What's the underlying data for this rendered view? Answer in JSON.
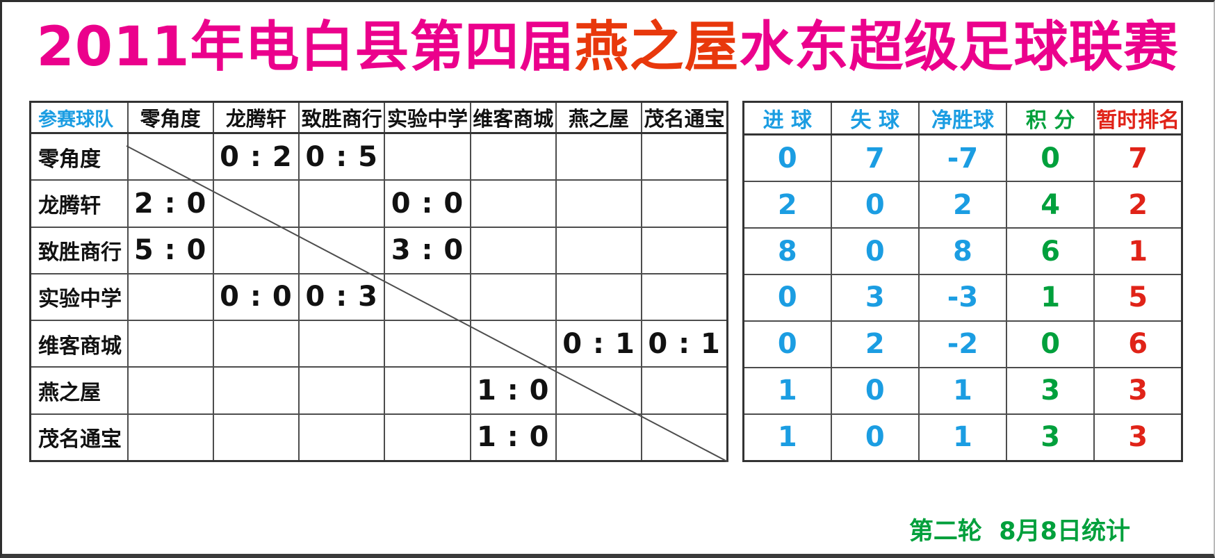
{
  "title": {
    "prefix": "2011年电白县第四届",
    "brand": "燕之屋",
    "suffix": "水东超级足球联赛"
  },
  "colors": {
    "title_pink": "#EB018C",
    "brand_red": "#E8380C",
    "blue": "#1B9DE2",
    "green": "#00A03C",
    "red": "#E02318",
    "grid": "#4d4d4d"
  },
  "matrix": {
    "corner_header": "参赛球队",
    "opponents": [
      "零角度",
      "龙腾轩",
      "致胜商行",
      "实验中学",
      "维客商城",
      "燕之屋",
      "茂名通宝"
    ],
    "rows": [
      {
        "team": "零角度",
        "scores": [
          "",
          "0 : 2",
          "0 : 5",
          "",
          "",
          "",
          ""
        ]
      },
      {
        "team": "龙腾轩",
        "scores": [
          "2 : 0",
          "",
          "",
          "0 : 0",
          "",
          "",
          ""
        ]
      },
      {
        "team": "致胜商行",
        "scores": [
          "5 : 0",
          "",
          "",
          "3 : 0",
          "",
          "",
          ""
        ]
      },
      {
        "team": "实验中学",
        "scores": [
          "",
          "0 : 0",
          "0 : 3",
          "",
          "",
          "",
          ""
        ]
      },
      {
        "team": "维客商城",
        "scores": [
          "",
          "",
          "",
          "",
          "",
          "0 : 1",
          "0 : 1"
        ]
      },
      {
        "team": "燕之屋",
        "scores": [
          "",
          "",
          "",
          "",
          "1 : 0",
          "",
          ""
        ]
      },
      {
        "team": "茂名通宝",
        "scores": [
          "",
          "",
          "",
          "",
          "1 : 0",
          "",
          ""
        ]
      }
    ]
  },
  "stats": {
    "headers": [
      "进 球",
      "失 球",
      "净胜球",
      "积 分",
      "暂时排名"
    ],
    "header_colors": [
      "#1B9DE2",
      "#1B9DE2",
      "#1B9DE2",
      "#00A03C",
      "#E02318"
    ],
    "column_colors": [
      "#1B9DE2",
      "#1B9DE2",
      "#1B9DE2",
      "#00A03C",
      "#E02318"
    ],
    "rows": [
      [
        "0",
        "7",
        "-7",
        "0",
        "7"
      ],
      [
        "2",
        "0",
        "2",
        "4",
        "2"
      ],
      [
        "8",
        "0",
        "8",
        "6",
        "1"
      ],
      [
        "0",
        "3",
        "-3",
        "1",
        "5"
      ],
      [
        "0",
        "2",
        "-2",
        "0",
        "6"
      ],
      [
        "1",
        "0",
        "1",
        "3",
        "3"
      ],
      [
        "1",
        "0",
        "1",
        "3",
        "3"
      ]
    ]
  },
  "footer": {
    "note": "第二轮  8月8日统计"
  }
}
